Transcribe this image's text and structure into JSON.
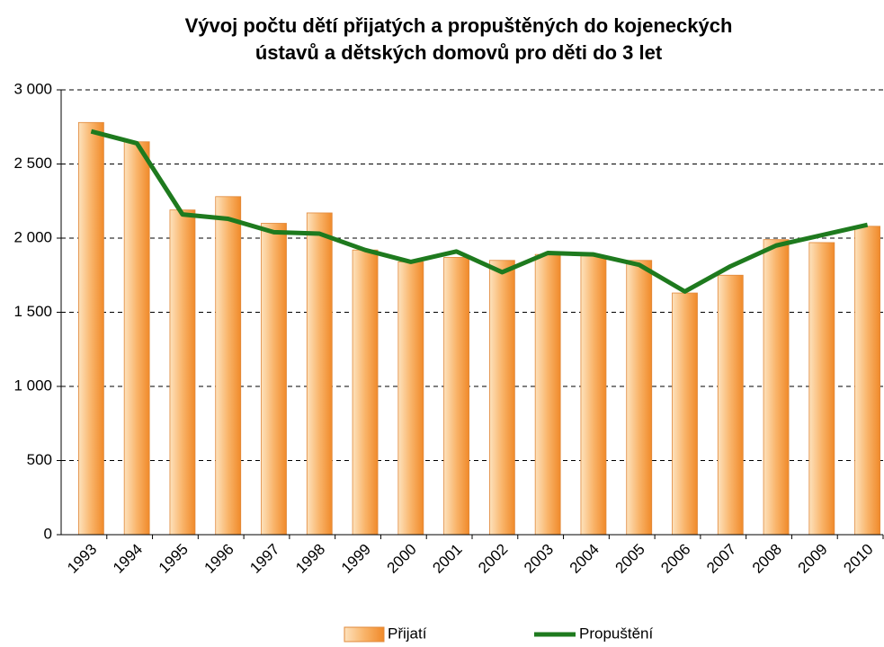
{
  "chart_data": {
    "type": "bar",
    "title": [
      "Vývoj počtu dětí přijatých a propuštěných do kojeneckých",
      "ústavů a dětských domovů pro děti do 3 let"
    ],
    "categories": [
      "1993",
      "1994",
      "1995",
      "1996",
      "1997",
      "1998",
      "1999",
      "2000",
      "2001",
      "2002",
      "2003",
      "2004",
      "2005",
      "2006",
      "2007",
      "2008",
      "2009",
      "2010"
    ],
    "series": [
      {
        "name": "Přijatí",
        "type": "bar",
        "color": "#f7a14a",
        "values": [
          2780,
          2650,
          2190,
          2280,
          2100,
          2170,
          1920,
          1840,
          1870,
          1850,
          1890,
          1880,
          1850,
          1630,
          1750,
          1990,
          1970,
          2080
        ]
      },
      {
        "name": "Propuštění",
        "type": "line",
        "color": "#1e7a1e",
        "values": [
          2720,
          2640,
          2160,
          2130,
          2040,
          2030,
          1920,
          1840,
          1910,
          1770,
          1900,
          1890,
          1820,
          1640,
          1810,
          1950,
          2020,
          2090
        ]
      }
    ],
    "ylim": [
      0,
      3000
    ],
    "yticks": [
      0,
      500,
      {
        "value": 1000,
        "label": "1 000"
      },
      {
        "value": 1500,
        "label": "1 500"
      },
      {
        "value": 2000,
        "label": "2 000"
      },
      {
        "value": 2500,
        "label": "2 500"
      },
      {
        "value": 3000,
        "label": "3 000"
      }
    ],
    "grid": true,
    "legend": "bottom"
  }
}
